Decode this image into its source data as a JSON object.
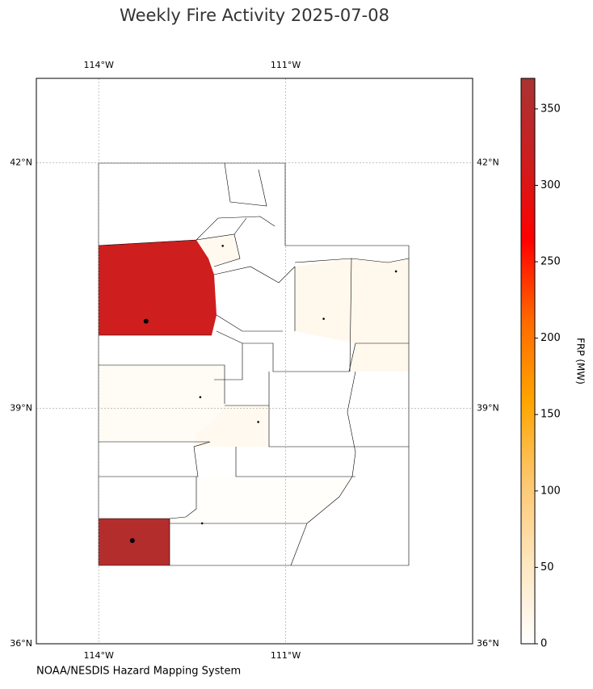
{
  "chart_data": {
    "type": "choropleth",
    "title": "Weekly Fire Activity 2025-07-08",
    "source": "NOAA/NESDIS Hazard Mapping System",
    "xlim": [
      -115,
      -108
    ],
    "ylim": [
      36,
      43
    ],
    "xticks": [
      {
        "value": -114,
        "label": "114°W"
      },
      {
        "value": -111,
        "label": "111°W"
      }
    ],
    "yticks": [
      {
        "value": 36,
        "label": "36°N"
      },
      {
        "value": 39,
        "label": "39°N"
      },
      {
        "value": 42,
        "label": "42°N"
      }
    ],
    "grid": true,
    "colorbar": {
      "label": "FRP (MW)",
      "lim": [
        0,
        370
      ],
      "ticks": [
        0,
        50,
        100,
        150,
        200,
        250,
        300,
        350
      ],
      "colormap": [
        "#ffffff",
        "#fee6bf",
        "#fdc770",
        "#ffa500",
        "#ff6a00",
        "#ff0000",
        "#cc1f1f",
        "#aa3333"
      ]
    },
    "regions": {
      "values": [
        315,
        355,
        12,
        15,
        8,
        12,
        3
      ]
    },
    "fires": {
      "lon": [
        -113.24,
        -113.46,
        -112.01,
        -110.39,
        -109.23,
        -112.37,
        -111.44,
        -112.34
      ],
      "lat": [
        40.08,
        37.33,
        41.0,
        40.11,
        40.69,
        39.14,
        38.83,
        37.55
      ]
    }
  }
}
